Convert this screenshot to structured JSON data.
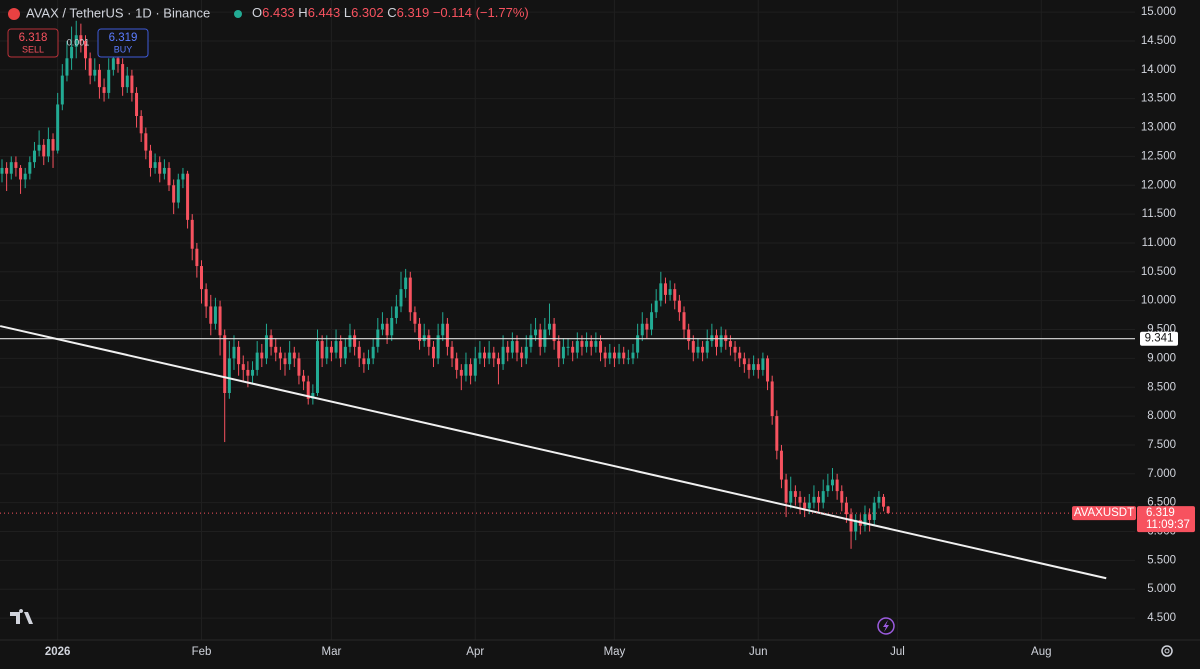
{
  "chart_data": {
    "type": "candlestick",
    "symbol": "AVAX / TetherUS · 1D · Binance",
    "ohlc_labels": [
      "O",
      "H",
      "L",
      "C"
    ],
    "ohlc_values": [
      6.433,
      6.443,
      6.302,
      6.319
    ],
    "change_label": "−0.114 (−1.77%)",
    "trade": {
      "sell_price": 6.318,
      "sell_label": "SELL",
      "spread": 0.001,
      "buy_price": 6.319,
      "buy_label": "BUY"
    },
    "up_color": "#22ab94",
    "down_color": "#f7525f",
    "ylim": [
      4.12,
      15.21
    ],
    "yticks": [
      {
        "value": 4.5,
        "label": "4.500"
      },
      {
        "value": 5,
        "label": "5.000"
      },
      {
        "value": 5.5,
        "label": "5.500"
      },
      {
        "value": 6,
        "label": "6.000"
      },
      {
        "value": 6.5,
        "label": "6.500"
      },
      {
        "value": 7,
        "label": "7.000"
      },
      {
        "value": 7.5,
        "label": "7.500"
      },
      {
        "value": 8,
        "label": "8.000"
      },
      {
        "value": 8.5,
        "label": "8.500"
      },
      {
        "value": 9,
        "label": "9.000"
      },
      {
        "value": 9.5,
        "label": "9.500"
      },
      {
        "value": 10,
        "label": "10.000"
      },
      {
        "value": 10.5,
        "label": "10.500"
      },
      {
        "value": 11,
        "label": "11.000"
      },
      {
        "value": 11.5,
        "label": "11.500"
      },
      {
        "value": 12,
        "label": "12.000"
      },
      {
        "value": 12.5,
        "label": "12.500"
      },
      {
        "value": 13,
        "label": "13.000"
      },
      {
        "value": 13.5,
        "label": "13.500"
      },
      {
        "value": 14,
        "label": "14.000"
      },
      {
        "value": 14.5,
        "label": "14.500"
      },
      {
        "value": 15,
        "label": "15.000"
      }
    ],
    "xlim": [
      -0.43,
      244.2
    ],
    "xticks": [
      {
        "value": 12,
        "label": "2026"
      },
      {
        "value": 43,
        "label": "Feb"
      },
      {
        "value": 71,
        "label": "Mar"
      },
      {
        "value": 102,
        "label": "Apr"
      },
      {
        "value": 132,
        "label": "May"
      },
      {
        "value": 163,
        "label": "Jun"
      },
      {
        "value": 193,
        "label": "Jul"
      },
      {
        "value": 224,
        "label": "Aug"
      }
    ],
    "grid": true,
    "hline": 9.341,
    "trendline": {
      "x": [
        -0.4,
        238
      ],
      "y": [
        9.56,
        5.19
      ]
    },
    "last_price": {
      "symbol": "AVAXUSDT",
      "value": 6.319,
      "countdown": "11:09:37"
    },
    "ohlc": [
      [
        12.2,
        12.45,
        12.05,
        12.3
      ],
      [
        12.3,
        12.4,
        11.9,
        12.2
      ],
      [
        12.2,
        12.5,
        12.1,
        12.4
      ],
      [
        12.4,
        12.5,
        12.15,
        12.3
      ],
      [
        12.3,
        12.35,
        11.85,
        12.1
      ],
      [
        12.1,
        12.3,
        11.95,
        12.2
      ],
      [
        12.2,
        12.5,
        12.1,
        12.4
      ],
      [
        12.4,
        12.75,
        12.3,
        12.6
      ],
      [
        12.6,
        12.95,
        12.5,
        12.7
      ],
      [
        12.7,
        12.8,
        12.35,
        12.5
      ],
      [
        12.5,
        13.0,
        12.4,
        12.8
      ],
      [
        12.8,
        12.9,
        12.3,
        12.6
      ],
      [
        12.6,
        13.6,
        12.55,
        13.4
      ],
      [
        13.4,
        14.1,
        13.3,
        13.9
      ],
      [
        13.9,
        14.5,
        13.8,
        14.2
      ],
      [
        14.2,
        14.75,
        14.0,
        14.4
      ],
      [
        14.4,
        14.85,
        14.2,
        14.6
      ],
      [
        14.6,
        14.8,
        14.3,
        14.5
      ],
      [
        14.5,
        14.6,
        14.0,
        14.2
      ],
      [
        14.2,
        14.3,
        13.75,
        13.9
      ],
      [
        13.9,
        14.2,
        13.8,
        14.0
      ],
      [
        14.0,
        14.1,
        13.5,
        13.7
      ],
      [
        13.7,
        13.85,
        13.45,
        13.6
      ],
      [
        13.6,
        14.2,
        13.5,
        14.0
      ],
      [
        14.0,
        14.6,
        13.9,
        14.2
      ],
      [
        14.2,
        14.4,
        13.95,
        14.1
      ],
      [
        14.1,
        14.2,
        13.55,
        13.7
      ],
      [
        13.7,
        14.05,
        13.6,
        13.9
      ],
      [
        13.9,
        14.0,
        13.45,
        13.6
      ],
      [
        13.6,
        13.7,
        13.0,
        13.2
      ],
      [
        13.2,
        13.3,
        12.75,
        12.9
      ],
      [
        12.9,
        13.0,
        12.45,
        12.6
      ],
      [
        12.6,
        12.7,
        12.15,
        12.3
      ],
      [
        12.3,
        12.55,
        12.2,
        12.4
      ],
      [
        12.4,
        12.5,
        12.05,
        12.2
      ],
      [
        12.2,
        12.45,
        12.1,
        12.3
      ],
      [
        12.3,
        12.4,
        11.9,
        12.0
      ],
      [
        12.0,
        12.1,
        11.5,
        11.7
      ],
      [
        11.7,
        12.2,
        11.6,
        12.1
      ],
      [
        12.1,
        12.3,
        11.95,
        12.2
      ],
      [
        12.2,
        12.25,
        11.25,
        11.4
      ],
      [
        11.4,
        11.5,
        10.7,
        10.9
      ],
      [
        10.9,
        11.0,
        10.4,
        10.6
      ],
      [
        10.6,
        10.7,
        9.95,
        10.2
      ],
      [
        10.2,
        10.3,
        9.7,
        9.9
      ],
      [
        9.9,
        10.1,
        9.4,
        9.6
      ],
      [
        9.6,
        10.05,
        9.5,
        9.9
      ],
      [
        9.9,
        10.0,
        9.05,
        9.4
      ],
      [
        9.4,
        9.5,
        7.55,
        8.4
      ],
      [
        8.4,
        9.3,
        8.3,
        9.0
      ],
      [
        9.0,
        9.4,
        8.8,
        9.2
      ],
      [
        9.2,
        9.3,
        8.7,
        8.9
      ],
      [
        8.9,
        9.05,
        8.6,
        8.8
      ],
      [
        8.8,
        8.95,
        8.5,
        8.7
      ],
      [
        8.7,
        8.95,
        8.55,
        8.8
      ],
      [
        8.8,
        9.3,
        8.7,
        9.1
      ],
      [
        9.1,
        9.25,
        8.85,
        9.0
      ],
      [
        9.0,
        9.6,
        8.9,
        9.4
      ],
      [
        9.4,
        9.5,
        9.05,
        9.2
      ],
      [
        9.2,
        9.35,
        8.95,
        9.1
      ],
      [
        9.1,
        9.2,
        8.8,
        9.0
      ],
      [
        9.0,
        9.1,
        8.7,
        8.9
      ],
      [
        8.9,
        9.3,
        8.8,
        9.1
      ],
      [
        9.1,
        9.2,
        8.85,
        9.0
      ],
      [
        9.0,
        9.1,
        8.55,
        8.7
      ],
      [
        8.7,
        8.8,
        8.45,
        8.6
      ],
      [
        8.6,
        8.7,
        8.2,
        8.3
      ],
      [
        8.3,
        8.55,
        8.2,
        8.4
      ],
      [
        8.4,
        9.5,
        8.35,
        9.3
      ],
      [
        9.3,
        9.4,
        8.85,
        9.0
      ],
      [
        9.0,
        9.4,
        8.9,
        9.2
      ],
      [
        9.2,
        9.3,
        8.95,
        9.1
      ],
      [
        9.1,
        9.5,
        9.0,
        9.3
      ],
      [
        9.3,
        9.4,
        8.85,
        9.0
      ],
      [
        9.0,
        9.35,
        8.9,
        9.2
      ],
      [
        9.2,
        9.6,
        9.1,
        9.4
      ],
      [
        9.4,
        9.5,
        9.05,
        9.2
      ],
      [
        9.2,
        9.3,
        8.85,
        9.0
      ],
      [
        9.0,
        9.1,
        8.75,
        8.9
      ],
      [
        8.9,
        9.15,
        8.8,
        9.0
      ],
      [
        9.0,
        9.35,
        8.9,
        9.2
      ],
      [
        9.2,
        9.7,
        9.1,
        9.5
      ],
      [
        9.5,
        9.8,
        9.4,
        9.6
      ],
      [
        9.6,
        9.7,
        9.25,
        9.4
      ],
      [
        9.4,
        9.9,
        9.3,
        9.7
      ],
      [
        9.7,
        10.1,
        9.6,
        9.9
      ],
      [
        9.9,
        10.5,
        9.8,
        10.2
      ],
      [
        10.2,
        10.55,
        10.05,
        10.4
      ],
      [
        10.4,
        10.5,
        9.65,
        9.8
      ],
      [
        9.8,
        9.9,
        9.45,
        9.6
      ],
      [
        9.6,
        9.7,
        9.15,
        9.3
      ],
      [
        9.3,
        9.6,
        9.2,
        9.4
      ],
      [
        9.4,
        9.5,
        9.05,
        9.2
      ],
      [
        9.2,
        9.3,
        8.85,
        9.0
      ],
      [
        9.0,
        9.6,
        8.9,
        9.4
      ],
      [
        9.4,
        9.8,
        9.3,
        9.6
      ],
      [
        9.6,
        9.7,
        9.05,
        9.2
      ],
      [
        9.2,
        9.3,
        8.85,
        9.0
      ],
      [
        9.0,
        9.1,
        8.65,
        8.8
      ],
      [
        8.8,
        8.9,
        8.45,
        8.7
      ],
      [
        8.7,
        9.1,
        8.6,
        8.9
      ],
      [
        8.9,
        9.0,
        8.55,
        8.7
      ],
      [
        8.7,
        9.2,
        8.6,
        9.0
      ],
      [
        9.0,
        9.3,
        8.9,
        9.1
      ],
      [
        9.1,
        9.2,
        8.85,
        9.0
      ],
      [
        9.0,
        9.3,
        8.9,
        9.1
      ],
      [
        9.1,
        9.2,
        8.85,
        9.0
      ],
      [
        9.0,
        9.1,
        8.55,
        8.9
      ],
      [
        8.9,
        9.4,
        8.8,
        9.2
      ],
      [
        9.2,
        9.3,
        8.95,
        9.1
      ],
      [
        9.1,
        9.45,
        9.0,
        9.3
      ],
      [
        9.3,
        9.4,
        8.95,
        9.1
      ],
      [
        9.1,
        9.2,
        8.85,
        9.0
      ],
      [
        9.0,
        9.4,
        8.9,
        9.2
      ],
      [
        9.2,
        9.6,
        9.1,
        9.4
      ],
      [
        9.4,
        9.7,
        9.3,
        9.5
      ],
      [
        9.5,
        9.6,
        9.05,
        9.2
      ],
      [
        9.2,
        9.7,
        9.1,
        9.5
      ],
      [
        9.5,
        9.95,
        9.4,
        9.6
      ],
      [
        9.6,
        9.7,
        9.15,
        9.3
      ],
      [
        9.3,
        9.4,
        8.85,
        9.0
      ],
      [
        9.0,
        9.35,
        8.9,
        9.2
      ],
      [
        9.2,
        9.35,
        9.05,
        9.2
      ],
      [
        9.2,
        9.3,
        8.95,
        9.1
      ],
      [
        9.1,
        9.45,
        9.0,
        9.3
      ],
      [
        9.3,
        9.4,
        9.05,
        9.2
      ],
      [
        9.2,
        9.45,
        9.1,
        9.3
      ],
      [
        9.3,
        9.4,
        9.05,
        9.2
      ],
      [
        9.2,
        9.45,
        9.1,
        9.3
      ],
      [
        9.3,
        9.4,
        8.95,
        9.1
      ],
      [
        9.1,
        9.2,
        8.85,
        9.0
      ],
      [
        9.0,
        9.25,
        8.9,
        9.1
      ],
      [
        9.1,
        9.2,
        8.85,
        9.0
      ],
      [
        9.0,
        9.25,
        8.9,
        9.1
      ],
      [
        9.1,
        9.2,
        8.9,
        9.0
      ],
      [
        9.0,
        9.15,
        8.9,
        9.0
      ],
      [
        9.0,
        9.25,
        8.9,
        9.1
      ],
      [
        9.1,
        9.6,
        9.0,
        9.4
      ],
      [
        9.4,
        9.8,
        9.3,
        9.6
      ],
      [
        9.6,
        9.7,
        9.35,
        9.5
      ],
      [
        9.5,
        9.95,
        9.4,
        9.8
      ],
      [
        9.8,
        10.2,
        9.7,
        10.0
      ],
      [
        10.0,
        10.5,
        9.9,
        10.3
      ],
      [
        10.3,
        10.4,
        9.95,
        10.1
      ],
      [
        10.1,
        10.35,
        10.0,
        10.2
      ],
      [
        10.2,
        10.3,
        9.85,
        10.0
      ],
      [
        10.0,
        10.1,
        9.65,
        9.8
      ],
      [
        9.8,
        9.9,
        9.35,
        9.5
      ],
      [
        9.5,
        9.6,
        9.15,
        9.3
      ],
      [
        9.3,
        9.4,
        8.95,
        9.1
      ],
      [
        9.1,
        9.35,
        9.0,
        9.2
      ],
      [
        9.2,
        9.3,
        8.95,
        9.1
      ],
      [
        9.1,
        9.5,
        9.0,
        9.3
      ],
      [
        9.3,
        9.6,
        9.2,
        9.4
      ],
      [
        9.4,
        9.5,
        9.05,
        9.2
      ],
      [
        9.2,
        9.55,
        9.1,
        9.4
      ],
      [
        9.4,
        9.5,
        9.15,
        9.3
      ],
      [
        9.3,
        9.4,
        9.05,
        9.2
      ],
      [
        9.2,
        9.3,
        8.95,
        9.1
      ],
      [
        9.1,
        9.2,
        8.85,
        9.0
      ],
      [
        9.0,
        9.1,
        8.75,
        8.9
      ],
      [
        8.9,
        9.0,
        8.65,
        8.8
      ],
      [
        8.8,
        9.05,
        8.7,
        8.9
      ],
      [
        8.9,
        9.0,
        8.65,
        8.8
      ],
      [
        8.8,
        9.1,
        8.7,
        9.0
      ],
      [
        9.0,
        9.05,
        8.45,
        8.6
      ],
      [
        8.6,
        8.7,
        7.85,
        8.0
      ],
      [
        8.0,
        8.1,
        7.25,
        7.4
      ],
      [
        7.4,
        7.5,
        6.75,
        6.9
      ],
      [
        6.9,
        7.0,
        6.25,
        6.5
      ],
      [
        6.5,
        6.95,
        6.4,
        6.7
      ],
      [
        6.7,
        6.8,
        6.45,
        6.6
      ],
      [
        6.6,
        6.7,
        6.3,
        6.5
      ],
      [
        6.5,
        6.6,
        6.25,
        6.4
      ],
      [
        6.4,
        6.65,
        6.3,
        6.5
      ],
      [
        6.5,
        6.8,
        6.4,
        6.6
      ],
      [
        6.6,
        6.7,
        6.35,
        6.5
      ],
      [
        6.5,
        6.9,
        6.4,
        6.7
      ],
      [
        6.7,
        7.0,
        6.6,
        6.8
      ],
      [
        6.8,
        7.1,
        6.7,
        6.9
      ],
      [
        6.9,
        7.0,
        6.55,
        6.7
      ],
      [
        6.7,
        6.8,
        6.35,
        6.5
      ],
      [
        6.5,
        6.6,
        6.15,
        6.3
      ],
      [
        6.3,
        6.4,
        5.7,
        6.0
      ],
      [
        6.0,
        6.3,
        5.85,
        6.2
      ],
      [
        6.2,
        6.3,
        5.95,
        6.1
      ],
      [
        6.1,
        6.45,
        6.0,
        6.3
      ],
      [
        6.3,
        6.4,
        6.0,
        6.2
      ],
      [
        6.2,
        6.6,
        6.1,
        6.5
      ],
      [
        6.5,
        6.7,
        6.4,
        6.6
      ],
      [
        6.6,
        6.65,
        6.35,
        6.43
      ],
      [
        6.433,
        6.443,
        6.302,
        6.319
      ]
    ]
  }
}
